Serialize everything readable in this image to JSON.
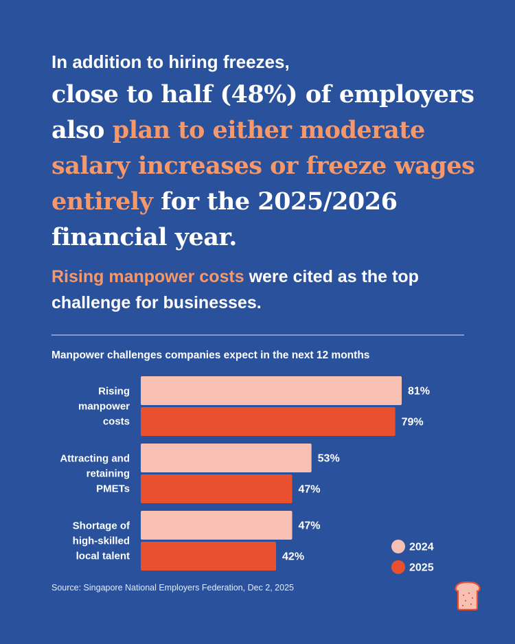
{
  "headline": {
    "intro": "In addition to hiring freezes,",
    "lead_pre": "close to half (48%) of employers also ",
    "lead_accent": "plan to either moderate salary increases or freeze wages entirely",
    "lead_post": " for the 2025/2026 financial year."
  },
  "subhead": {
    "accent": "Rising manpower costs",
    "rest": " were cited as the top challenge for businesses."
  },
  "source": "Source: Singapore National Employers Federation, Dec 2, 2025",
  "colors": {
    "background": "#2a519b",
    "accent_text": "#f7986a",
    "series_2024": "#f8c0b2",
    "series_2025": "#e8502f"
  },
  "logo": {
    "icon": "toast-icon"
  },
  "chart_data": {
    "type": "bar",
    "orientation": "horizontal",
    "title": "Manpower challenges companies expect in the next 12 months",
    "categories": [
      [
        "Rising",
        "manpower",
        "costs"
      ],
      [
        "Attracting and",
        "retaining",
        "PMETs"
      ],
      [
        "Shortage of",
        "high-skilled",
        "local talent"
      ]
    ],
    "series": [
      {
        "name": "2024",
        "color": "#f8c0b2",
        "values": [
          81,
          53,
          47
        ],
        "labels": [
          "81%",
          "53%",
          "47%"
        ]
      },
      {
        "name": "2025",
        "color": "#e8502f",
        "values": [
          79,
          47,
          42
        ],
        "labels": [
          "79%",
          "47%",
          "42%"
        ]
      }
    ],
    "xlim": [
      0,
      100
    ],
    "grid": false,
    "legend_position": "bottom-right"
  }
}
